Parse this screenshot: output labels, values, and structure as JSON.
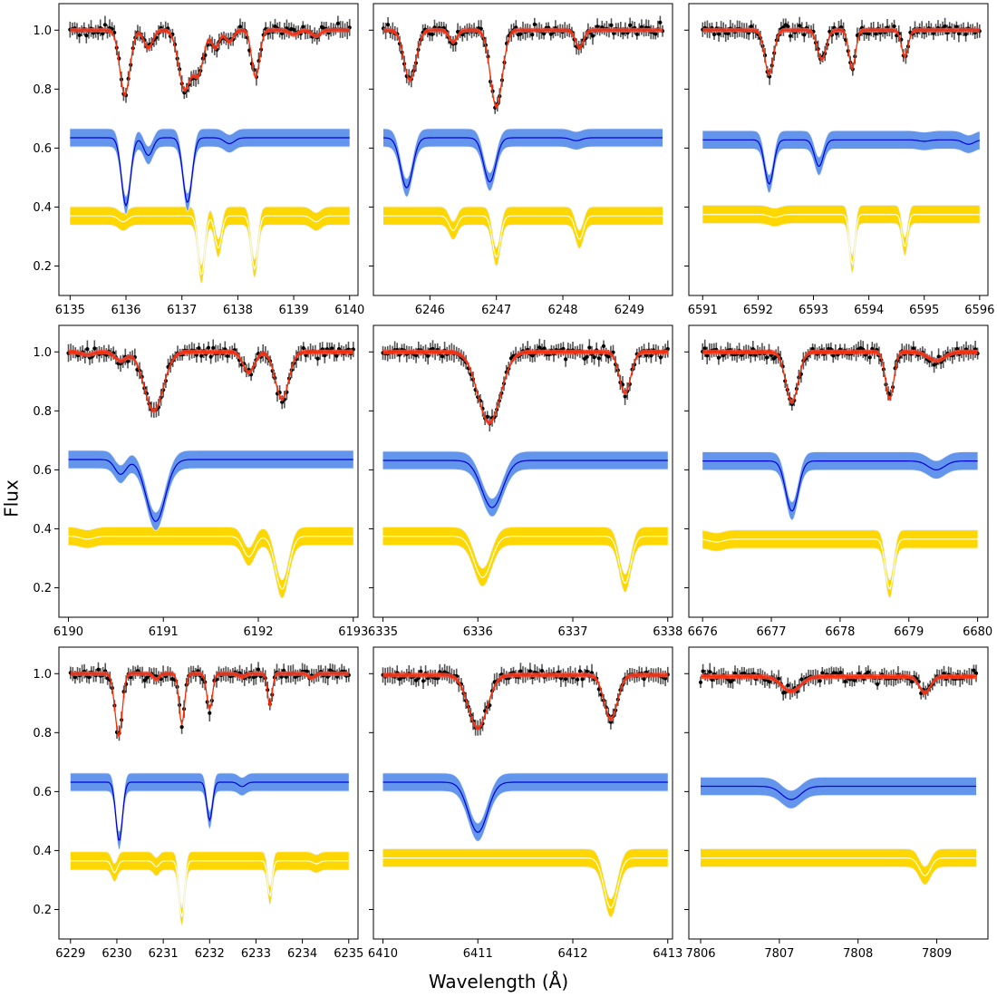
{
  "figure": {
    "ylabel": "Flux",
    "xlabel": "Wavelength (Å)"
  },
  "colors": {
    "data": "#000000",
    "errorbar": "#555555",
    "model": "#ff2a00",
    "model_band": "#f04a3a",
    "primary_line": "#0000d8",
    "primary_band": "#6495ed",
    "secondary_line": "#ffffe0",
    "secondary_band": "#ffd700"
  },
  "chart_data": [
    {
      "type": "line",
      "row": 0,
      "col": 0,
      "xlim": [
        6134.8,
        6140.15
      ],
      "ylim": [
        0.1,
        1.09
      ],
      "xticks": [
        6135,
        6136,
        6137,
        6138,
        6139,
        6140
      ],
      "yticks": [
        0.2,
        0.4,
        0.6,
        0.8,
        1.0
      ],
      "x_range": [
        6135,
        6140
      ],
      "series": [
        {
          "name": "observed",
          "baseline": 1.0,
          "noise": 0.018,
          "lines": [
            [
              6135.98,
              0.22,
              0.09
            ],
            [
              6136.4,
              0.06,
              0.08
            ],
            [
              6137.05,
              0.2,
              0.11
            ],
            [
              6137.3,
              0.14,
              0.09
            ],
            [
              6137.6,
              0.06,
              0.07
            ],
            [
              6137.85,
              0.04,
              0.07
            ],
            [
              6138.32,
              0.16,
              0.07
            ],
            [
              6139.0,
              0.015,
              0.08
            ],
            [
              6139.4,
              0.02,
              0.08
            ]
          ]
        },
        {
          "name": "primary",
          "baseline": 0.635,
          "band": 0.03,
          "lines": [
            [
              6136.0,
              0.23,
              0.08
            ],
            [
              6136.4,
              0.06,
              0.08
            ],
            [
              6137.1,
              0.22,
              0.08
            ],
            [
              6137.85,
              0.02,
              0.09
            ]
          ]
        },
        {
          "name": "secondary",
          "baseline": 0.37,
          "band": 0.03,
          "lines": [
            [
              6135.95,
              0.02,
              0.08
            ],
            [
              6137.35,
              0.2,
              0.06
            ],
            [
              6137.65,
              0.11,
              0.06
            ],
            [
              6138.3,
              0.18,
              0.06
            ],
            [
              6139.4,
              0.02,
              0.08
            ]
          ]
        }
      ]
    },
    {
      "type": "line",
      "row": 0,
      "col": 1,
      "xlim": [
        6245.15,
        6249.65
      ],
      "ylim": [
        0.1,
        1.09
      ],
      "xticks": [
        6246,
        6247,
        6248,
        6249
      ],
      "yticks": [
        0.2,
        0.4,
        0.6,
        0.8,
        1.0
      ],
      "x_range": [
        6245.3,
        6249.5
      ],
      "series": [
        {
          "name": "observed",
          "baseline": 1.0,
          "noise": 0.018,
          "lines": [
            [
              6245.7,
              0.17,
              0.09
            ],
            [
              6246.35,
              0.04,
              0.06
            ],
            [
              6247.0,
              0.26,
              0.09
            ],
            [
              6248.25,
              0.06,
              0.06
            ]
          ]
        },
        {
          "name": "primary",
          "baseline": 0.635,
          "band": 0.03,
          "lines": [
            [
              6245.65,
              0.17,
              0.09
            ],
            [
              6246.9,
              0.15,
              0.09
            ],
            [
              6248.2,
              0.01,
              0.08
            ]
          ]
        },
        {
          "name": "secondary",
          "baseline": 0.37,
          "band": 0.03,
          "lines": [
            [
              6246.35,
              0.05,
              0.06
            ],
            [
              6247.0,
              0.14,
              0.06
            ],
            [
              6248.25,
              0.08,
              0.06
            ]
          ]
        }
      ]
    },
    {
      "type": "line",
      "row": 0,
      "col": 2,
      "xlim": [
        6590.75,
        6596.15
      ],
      "ylim": [
        0.1,
        1.09
      ],
      "xticks": [
        6591,
        6592,
        6593,
        6594,
        6595,
        6596
      ],
      "yticks": [
        0.2,
        0.4,
        0.6,
        0.8,
        1.0
      ],
      "x_range": [
        6591,
        6596
      ],
      "series": [
        {
          "name": "observed",
          "baseline": 1.0,
          "noise": 0.018,
          "lines": [
            [
              6592.2,
              0.15,
              0.08
            ],
            [
              6593.15,
              0.1,
              0.08
            ],
            [
              6593.7,
              0.13,
              0.06
            ],
            [
              6594.65,
              0.09,
              0.06
            ]
          ]
        },
        {
          "name": "primary",
          "baseline": 0.628,
          "band": 0.03,
          "lines": [
            [
              6592.2,
              0.15,
              0.08
            ],
            [
              6593.1,
              0.09,
              0.08
            ],
            [
              6595.0,
              0.005,
              0.1
            ],
            [
              6595.8,
              0.015,
              0.1
            ]
          ]
        },
        {
          "name": "secondary",
          "baseline": 0.375,
          "band": 0.03,
          "lines": [
            [
              6592.3,
              0.01,
              0.1
            ],
            [
              6593.7,
              0.17,
              0.05
            ],
            [
              6594.65,
              0.11,
              0.05
            ]
          ]
        }
      ]
    },
    {
      "type": "line",
      "row": 1,
      "col": 0,
      "xlim": [
        6189.9,
        6193.05
      ],
      "ylim": [
        0.1,
        1.09
      ],
      "xticks": [
        6190,
        6191,
        6192,
        6193
      ],
      "yticks": [
        0.2,
        0.4,
        0.6,
        0.8,
        1.0
      ],
      "x_range": [
        6190,
        6193
      ],
      "series": [
        {
          "name": "observed",
          "baseline": 1.0,
          "noise": 0.018,
          "lines": [
            [
              6190.2,
              0.01,
              0.06
            ],
            [
              6190.55,
              0.03,
              0.06
            ],
            [
              6190.9,
              0.2,
              0.1
            ],
            [
              6191.9,
              0.07,
              0.06
            ],
            [
              6192.25,
              0.16,
              0.07
            ]
          ]
        },
        {
          "name": "primary",
          "baseline": 0.635,
          "band": 0.03,
          "lines": [
            [
              6190.55,
              0.05,
              0.06
            ],
            [
              6190.92,
              0.21,
              0.1
            ]
          ]
        },
        {
          "name": "secondary",
          "baseline": 0.375,
          "band": 0.03,
          "lines": [
            [
              6190.2,
              0.01,
              0.07
            ],
            [
              6191.9,
              0.07,
              0.06
            ],
            [
              6192.25,
              0.18,
              0.07
            ]
          ]
        }
      ]
    },
    {
      "type": "line",
      "row": 1,
      "col": 1,
      "xlim": [
        6334.9,
        6338.05
      ],
      "ylim": [
        0.1,
        1.09
      ],
      "xticks": [
        6335,
        6336,
        6337,
        6338
      ],
      "yticks": [
        0.2,
        0.4,
        0.6,
        0.8,
        1.0
      ],
      "x_range": [
        6335,
        6338
      ],
      "series": [
        {
          "name": "observed",
          "baseline": 1.0,
          "noise": 0.018,
          "lines": [
            [
              6336.12,
              0.24,
              0.12
            ],
            [
              6337.55,
              0.14,
              0.06
            ]
          ]
        },
        {
          "name": "primary",
          "baseline": 0.632,
          "band": 0.03,
          "lines": [
            [
              6336.15,
              0.16,
              0.11
            ]
          ]
        },
        {
          "name": "secondary",
          "baseline": 0.375,
          "band": 0.03,
          "lines": [
            [
              6336.05,
              0.14,
              0.09
            ],
            [
              6337.55,
              0.16,
              0.06
            ]
          ]
        }
      ]
    },
    {
      "type": "line",
      "row": 1,
      "col": 2,
      "xlim": [
        6675.8,
        6680.15
      ],
      "ylim": [
        0.1,
        1.09
      ],
      "xticks": [
        6676,
        6677,
        6678,
        6679,
        6680
      ],
      "yticks": [
        0.2,
        0.4,
        0.6,
        0.8,
        1.0
      ],
      "x_range": [
        6676,
        6680
      ],
      "series": [
        {
          "name": "observed",
          "baseline": 1.0,
          "noise": 0.018,
          "lines": [
            [
              6677.3,
              0.17,
              0.09
            ],
            [
              6678.72,
              0.16,
              0.06
            ],
            [
              6679.4,
              0.03,
              0.12
            ]
          ]
        },
        {
          "name": "primary",
          "baseline": 0.63,
          "band": 0.03,
          "lines": [
            [
              6677.3,
              0.17,
              0.09
            ],
            [
              6679.4,
              0.03,
              0.12
            ]
          ]
        },
        {
          "name": "secondary",
          "baseline": 0.365,
          "band": 0.03,
          "lines": [
            [
              6676.2,
              0.01,
              0.1
            ],
            [
              6678.72,
              0.17,
              0.06
            ]
          ]
        }
      ]
    },
    {
      "type": "line",
      "row": 2,
      "col": 0,
      "xlim": [
        6228.75,
        6235.2
      ],
      "ylim": [
        0.1,
        1.09
      ],
      "xticks": [
        6229,
        6230,
        6231,
        6232,
        6233,
        6234,
        6235
      ],
      "yticks": [
        0.2,
        0.4,
        0.6,
        0.8,
        1.0
      ],
      "x_range": [
        6229,
        6235
      ],
      "series": [
        {
          "name": "observed",
          "baseline": 1.0,
          "noise": 0.018,
          "lines": [
            [
              6229.95,
              0.04,
              0.06
            ],
            [
              6230.05,
              0.2,
              0.07
            ],
            [
              6230.85,
              0.02,
              0.06
            ],
            [
              6231.4,
              0.17,
              0.06
            ],
            [
              6232.0,
              0.12,
              0.06
            ],
            [
              6232.7,
              0.01,
              0.08
            ],
            [
              6233.3,
              0.11,
              0.05
            ],
            [
              6234.2,
              0.015,
              0.07
            ]
          ]
        },
        {
          "name": "primary",
          "baseline": 0.632,
          "band": 0.03,
          "lines": [
            [
              6230.05,
              0.2,
              0.07
            ],
            [
              6232.0,
              0.13,
              0.06
            ],
            [
              6232.7,
              0.015,
              0.08
            ]
          ]
        },
        {
          "name": "secondary",
          "baseline": 0.365,
          "band": 0.03,
          "lines": [
            [
              6229.95,
              0.04,
              0.06
            ],
            [
              6230.85,
              0.02,
              0.06
            ],
            [
              6231.4,
              0.19,
              0.06
            ],
            [
              6233.3,
              0.12,
              0.05
            ],
            [
              6234.3,
              0.01,
              0.07
            ]
          ]
        }
      ]
    },
    {
      "type": "line",
      "row": 2,
      "col": 1,
      "xlim": [
        6409.9,
        6413.05
      ],
      "ylim": [
        0.1,
        1.09
      ],
      "xticks": [
        6410,
        6411,
        6412,
        6413
      ],
      "yticks": [
        0.2,
        0.4,
        0.6,
        0.8,
        1.0
      ],
      "x_range": [
        6410,
        6413
      ],
      "series": [
        {
          "name": "observed",
          "baseline": 0.995,
          "noise": 0.018,
          "lines": [
            [
              6411.0,
              0.18,
              0.1
            ],
            [
              6412.4,
              0.15,
              0.07
            ]
          ]
        },
        {
          "name": "primary",
          "baseline": 0.632,
          "band": 0.03,
          "lines": [
            [
              6411.0,
              0.17,
              0.1
            ]
          ]
        },
        {
          "name": "secondary",
          "baseline": 0.375,
          "band": 0.03,
          "lines": [
            [
              6412.4,
              0.17,
              0.07
            ]
          ]
        }
      ]
    },
    {
      "type": "line",
      "row": 2,
      "col": 2,
      "xlim": [
        7805.85,
        7809.65
      ],
      "ylim": [
        0.1,
        1.09
      ],
      "xticks": [
        7806,
        7807,
        7808,
        7809
      ],
      "yticks": [
        0.2,
        0.4,
        0.6,
        0.8,
        1.0
      ],
      "x_range": [
        7806,
        7809.5
      ],
      "series": [
        {
          "name": "observed",
          "baseline": 0.99,
          "noise": 0.018,
          "lines": [
            [
              7807.15,
              0.05,
              0.12
            ],
            [
              7808.85,
              0.055,
              0.07
            ]
          ]
        },
        {
          "name": "primary",
          "baseline": 0.618,
          "band": 0.03,
          "lines": [
            [
              7807.15,
              0.045,
              0.12
            ]
          ]
        },
        {
          "name": "secondary",
          "baseline": 0.375,
          "band": 0.03,
          "lines": [
            [
              7808.85,
              0.06,
              0.07
            ]
          ]
        }
      ]
    }
  ]
}
